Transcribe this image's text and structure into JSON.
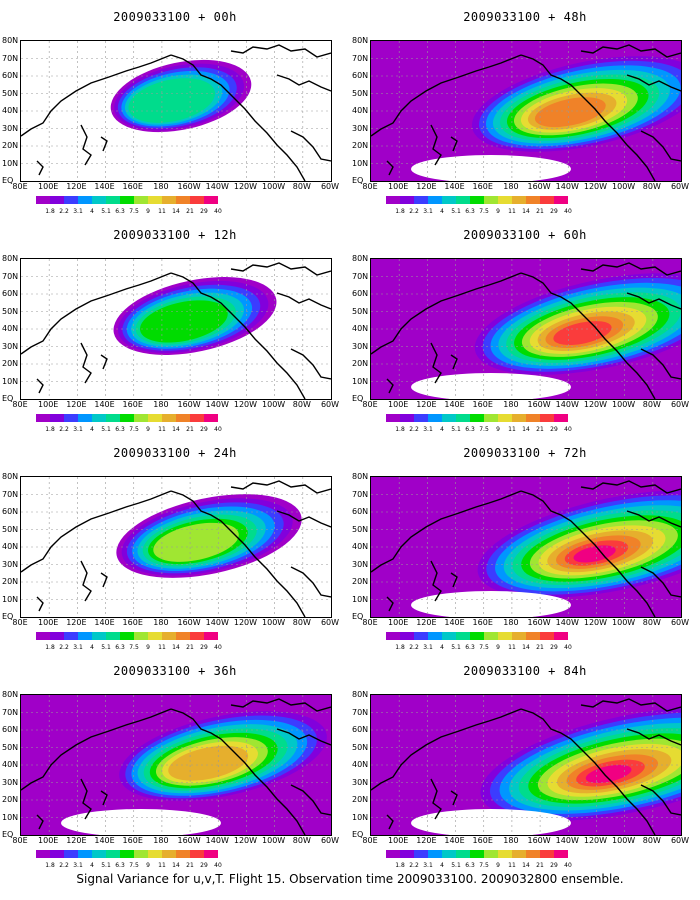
{
  "caption": "Signal Variance for u,v,T. Flight 15. Observation time 2009033100. 2009032800 ensemble.",
  "lat_labels": [
    "80N",
    "70N",
    "60N",
    "50N",
    "40N",
    "30N",
    "20N",
    "10N",
    "EQ"
  ],
  "lon_labels": [
    "80E",
    "100E",
    "120E",
    "140E",
    "160E",
    "180",
    "160W",
    "140W",
    "120W",
    "100W",
    "80W",
    "60W"
  ],
  "colorbar": {
    "labels": [
      "1.8",
      "2.2",
      "3.1",
      "4",
      "5.1",
      "6.3",
      "7.5",
      "9",
      "11",
      "14",
      "21",
      "29",
      "40"
    ],
    "colors": [
      "#a000c8",
      "#8200dc",
      "#3c3cff",
      "#0096ff",
      "#00c8c8",
      "#00dc8c",
      "#00dc00",
      "#a0e632",
      "#e6dc32",
      "#e6af2d",
      "#f08228",
      "#fa3c3c",
      "#f00082"
    ]
  },
  "panels": [
    {
      "title": "2009033100 + 00h",
      "level": 0
    },
    {
      "title": "2009033100 + 48h",
      "level": 4
    },
    {
      "title": "2009033100 + 12h",
      "level": 1
    },
    {
      "title": "2009033100 + 60h",
      "level": 5
    },
    {
      "title": "2009033100 + 24h",
      "level": 2
    },
    {
      "title": "2009033100 + 72h",
      "level": 6
    },
    {
      "title": "2009033100 + 36h",
      "level": 3
    },
    {
      "title": "2009033100 + 84h",
      "level": 7
    }
  ]
}
